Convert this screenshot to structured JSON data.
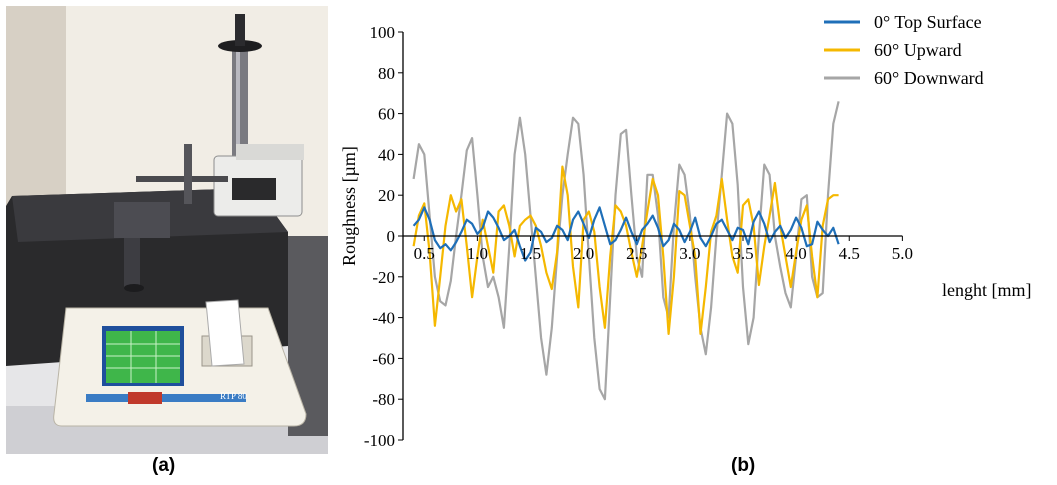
{
  "figure": {
    "panel_a_label": "(a)",
    "panel_b_label": "(b)",
    "photo": {
      "device_label": "RTP 80",
      "screen_color": "#3fb64a",
      "base_color": "#2a2a2c",
      "wall_color": "#f1ede5"
    }
  },
  "chart_data": {
    "type": "line",
    "title": "",
    "xlabel": "lenght [mm]",
    "ylabel": "Roughness [µm]",
    "xlim": [
      0.3,
      5.0
    ],
    "ylim": [
      -100,
      100
    ],
    "xticks": [
      0.5,
      1.0,
      1.5,
      2.0,
      2.5,
      3.0,
      3.5,
      4.0,
      4.5,
      5.0
    ],
    "yticks": [
      100,
      80,
      60,
      40,
      20,
      0,
      -20,
      -40,
      -60,
      -80,
      -100
    ],
    "grid": false,
    "legend_position": "top-right",
    "series": [
      {
        "name": "0°   Top Surface",
        "color": "#1f6fb8",
        "x": [
          0.4,
          0.45,
          0.5,
          0.55,
          0.6,
          0.65,
          0.7,
          0.75,
          0.8,
          0.85,
          0.9,
          0.95,
          1.0,
          1.05,
          1.1,
          1.15,
          1.2,
          1.25,
          1.3,
          1.35,
          1.4,
          1.45,
          1.5,
          1.55,
          1.6,
          1.65,
          1.7,
          1.75,
          1.8,
          1.85,
          1.9,
          1.95,
          2.0,
          2.05,
          2.1,
          2.15,
          2.2,
          2.25,
          2.3,
          2.35,
          2.4,
          2.45,
          2.5,
          2.55,
          2.6,
          2.65,
          2.7,
          2.75,
          2.8,
          2.85,
          2.9,
          2.95,
          3.0,
          3.05,
          3.1,
          3.15,
          3.2,
          3.25,
          3.3,
          3.35,
          3.4,
          3.45,
          3.5,
          3.55,
          3.6,
          3.65,
          3.7,
          3.75,
          3.8,
          3.85,
          3.9,
          3.95,
          4.0,
          4.05,
          4.1,
          4.15,
          4.2,
          4.25,
          4.3,
          4.35,
          4.4
        ],
        "values": [
          5,
          8,
          14,
          8,
          -2,
          -6,
          -4,
          -7,
          -3,
          2,
          8,
          6,
          1,
          4,
          12,
          9,
          4,
          -2,
          0,
          3,
          -5,
          -12,
          -8,
          4,
          2,
          -3,
          -1,
          5,
          3,
          -2,
          8,
          12,
          6,
          -1,
          8,
          14,
          5,
          -4,
          -2,
          3,
          9,
          2,
          -4,
          3,
          6,
          10,
          4,
          -5,
          -2,
          6,
          3,
          -3,
          2,
          9,
          -1,
          -5,
          0,
          6,
          8,
          3,
          -2,
          4,
          3,
          -4,
          7,
          12,
          6,
          -3,
          2,
          5,
          -1,
          3,
          9,
          4,
          -5,
          -4,
          7,
          3,
          0,
          4,
          -4
        ]
      },
      {
        "name": "60° Upward",
        "color": "#f5b800",
        "x": [
          0.4,
          0.45,
          0.5,
          0.55,
          0.6,
          0.65,
          0.7,
          0.75,
          0.8,
          0.85,
          0.9,
          0.95,
          1.0,
          1.05,
          1.1,
          1.15,
          1.2,
          1.25,
          1.3,
          1.35,
          1.4,
          1.45,
          1.5,
          1.55,
          1.6,
          1.65,
          1.7,
          1.75,
          1.8,
          1.85,
          1.9,
          1.95,
          2.0,
          2.05,
          2.1,
          2.15,
          2.2,
          2.25,
          2.3,
          2.35,
          2.4,
          2.45,
          2.5,
          2.55,
          2.6,
          2.65,
          2.7,
          2.75,
          2.8,
          2.85,
          2.9,
          2.95,
          3.0,
          3.05,
          3.1,
          3.15,
          3.2,
          3.25,
          3.3,
          3.35,
          3.4,
          3.45,
          3.5,
          3.55,
          3.6,
          3.65,
          3.7,
          3.75,
          3.8,
          3.85,
          3.9,
          3.95,
          4.0,
          4.05,
          4.1,
          4.15,
          4.2,
          4.25,
          4.3,
          4.35,
          4.4
        ],
        "values": [
          -5,
          10,
          16,
          -8,
          -44,
          -20,
          5,
          20,
          12,
          18,
          -5,
          -30,
          -10,
          8,
          -5,
          -18,
          12,
          15,
          5,
          -10,
          5,
          8,
          10,
          5,
          -5,
          -18,
          -26,
          -8,
          34,
          20,
          -15,
          -35,
          8,
          12,
          2,
          -25,
          -45,
          -10,
          15,
          12,
          5,
          -8,
          -20,
          -5,
          12,
          28,
          20,
          -10,
          -48,
          -20,
          22,
          20,
          5,
          -10,
          -48,
          -25,
          2,
          10,
          28,
          8,
          -10,
          -18,
          15,
          18,
          5,
          -24,
          -5,
          10,
          26,
          5,
          -10,
          -25,
          -8,
          8,
          15,
          -10,
          -30,
          5,
          18,
          20,
          20
        ]
      },
      {
        "name": "60° Downward",
        "color": "#a6a6a6",
        "x": [
          0.4,
          0.45,
          0.5,
          0.55,
          0.6,
          0.65,
          0.7,
          0.75,
          0.8,
          0.85,
          0.9,
          0.95,
          1.0,
          1.05,
          1.1,
          1.15,
          1.2,
          1.25,
          1.3,
          1.35,
          1.4,
          1.45,
          1.5,
          1.55,
          1.6,
          1.65,
          1.7,
          1.75,
          1.8,
          1.85,
          1.9,
          1.95,
          2.0,
          2.05,
          2.1,
          2.15,
          2.2,
          2.25,
          2.3,
          2.35,
          2.4,
          2.45,
          2.5,
          2.55,
          2.6,
          2.65,
          2.7,
          2.75,
          2.8,
          2.85,
          2.9,
          2.95,
          3.0,
          3.05,
          3.1,
          3.15,
          3.2,
          3.25,
          3.3,
          3.35,
          3.4,
          3.45,
          3.5,
          3.55,
          3.6,
          3.65,
          3.7,
          3.75,
          3.8,
          3.85,
          3.9,
          3.95,
          4.0,
          4.05,
          4.1,
          4.15,
          4.2,
          4.25,
          4.3,
          4.35,
          4.4
        ],
        "values": [
          28,
          45,
          40,
          10,
          -20,
          -32,
          -34,
          -22,
          0,
          20,
          42,
          48,
          20,
          -10,
          -25,
          -20,
          -30,
          -45,
          -5,
          40,
          58,
          40,
          10,
          -20,
          -50,
          -68,
          -45,
          -10,
          20,
          40,
          58,
          55,
          30,
          -10,
          -50,
          -75,
          -80,
          -30,
          20,
          50,
          52,
          20,
          -10,
          -20,
          30,
          30,
          10,
          -30,
          -40,
          5,
          35,
          30,
          10,
          -20,
          -45,
          -58,
          -35,
          0,
          30,
          60,
          55,
          25,
          -25,
          -53,
          -40,
          0,
          35,
          30,
          0,
          -15,
          -28,
          -35,
          -10,
          18,
          20,
          -20,
          -30,
          -28,
          20,
          55,
          66
        ]
      }
    ]
  }
}
